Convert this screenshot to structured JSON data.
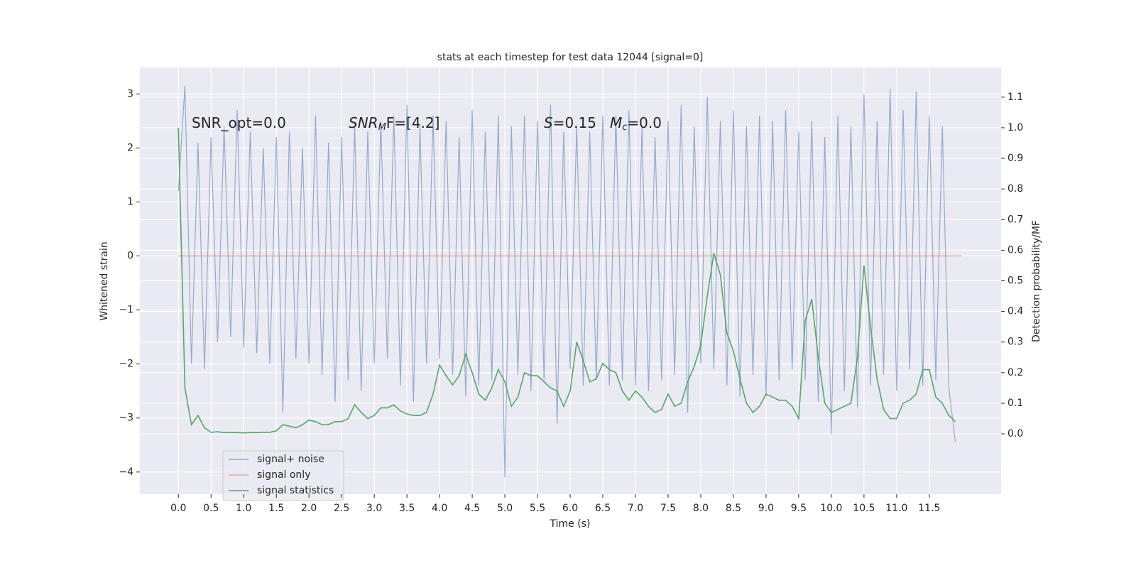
{
  "chart_data": {
    "type": "line",
    "title": "stats at each timestep for test data 12044 [signal=0]",
    "xlabel": "Time (s)",
    "ylabel": "Whitened strain",
    "y2label": "Detection probability/MF",
    "annotations": [
      [
        "SNR_opt=0.0"
      ],
      [
        "SNR",
        "M",
        "F=[4.2]"
      ],
      [
        "S",
        "=0.15"
      ],
      [
        "M",
        "c",
        "=0.0"
      ]
    ],
    "x": [
      0,
      0.1,
      0.2,
      0.3,
      0.4,
      0.5,
      0.6,
      0.7,
      0.8,
      0.9,
      1.0,
      1.1,
      1.2,
      1.3,
      1.4,
      1.5,
      1.6,
      1.7,
      1.8,
      1.9,
      2.0,
      2.1,
      2.2,
      2.3,
      2.4,
      2.5,
      2.6,
      2.7,
      2.8,
      2.9,
      3.0,
      3.1,
      3.2,
      3.3,
      3.4,
      3.5,
      3.6,
      3.7,
      3.8,
      3.9,
      4.0,
      4.1,
      4.2,
      4.3,
      4.4,
      4.5,
      4.6,
      4.7,
      4.8,
      4.9,
      5.0,
      5.1,
      5.2,
      5.3,
      5.4,
      5.5,
      5.6,
      5.7,
      5.8,
      5.9,
      6.0,
      6.1,
      6.2,
      6.3,
      6.4,
      6.5,
      6.6,
      6.7,
      6.8,
      6.9,
      7.0,
      7.1,
      7.2,
      7.3,
      7.4,
      7.5,
      7.6,
      7.7,
      7.8,
      7.9,
      8.0,
      8.1,
      8.2,
      8.3,
      8.4,
      8.5,
      8.6,
      8.7,
      8.8,
      8.9,
      9.0,
      9.1,
      9.2,
      9.3,
      9.4,
      9.5,
      9.6,
      9.7,
      9.8,
      9.9,
      10.0,
      10.1,
      10.2,
      10.3,
      10.4,
      10.5,
      10.6,
      10.7,
      10.8,
      10.9,
      11.0,
      11.1,
      11.2,
      11.3,
      11.4,
      11.5,
      11.6,
      11.7,
      11.8,
      11.9
    ],
    "series": [
      {
        "name": "signal+ noise",
        "color": "#4c72b0",
        "values": [
          1.2,
          3.15,
          -2.0,
          2.1,
          -2.1,
          2.2,
          -1.6,
          2.4,
          -1.5,
          2.7,
          -1.7,
          2.3,
          -1.8,
          2.0,
          -2.0,
          2.2,
          -2.9,
          2.3,
          -1.9,
          2.0,
          -2.0,
          2.6,
          -2.2,
          2.1,
          -2.7,
          2.2,
          -2.3,
          2.4,
          -2.5,
          2.3,
          -2.0,
          2.5,
          -1.9,
          2.6,
          -2.4,
          2.8,
          -2.7,
          2.4,
          -2.0,
          2.6,
          -1.9,
          2.5,
          -2.2,
          2.2,
          -2.6,
          2.7,
          -2.4,
          2.3,
          -2.3,
          2.6,
          -4.1,
          2.4,
          -2.2,
          2.6,
          -2.5,
          2.5,
          -2.3,
          2.8,
          -3.1,
          2.3,
          -2.1,
          2.4,
          -2.4,
          2.3,
          -2.3,
          2.6,
          -2.4,
          2.6,
          -2.3,
          2.7,
          -2.4,
          2.4,
          -2.5,
          2.2,
          -2.3,
          2.5,
          -2.2,
          2.8,
          -2.9,
          2.4,
          -2.0,
          2.95,
          -2.1,
          2.5,
          -2.4,
          2.7,
          -2.6,
          2.4,
          -2.2,
          2.6,
          -2.6,
          2.5,
          -2.3,
          2.7,
          -2.1,
          2.3,
          -2.3,
          2.5,
          -2.7,
          2.2,
          -3.3,
          2.6,
          -2.5,
          2.4,
          -2.8,
          3.0,
          -2.4,
          2.5,
          -2.2,
          3.1,
          -2.5,
          2.7,
          -2.1,
          3.05,
          -2.4,
          2.6,
          -2.3,
          2.4,
          -2.45,
          -3.45
        ]
      },
      {
        "name": "signal only",
        "color": "#dd8452",
        "x": [
          0,
          11.99
        ],
        "values": [
          0,
          0
        ]
      },
      {
        "name": "signal statistics",
        "color": "#55a868",
        "axis": "y2",
        "values": [
          1.0,
          0.15,
          0.03,
          0.06,
          0.02,
          0.005,
          0.007,
          0.004,
          0.004,
          0.004,
          0.003,
          0.004,
          0.004,
          0.005,
          0.005,
          0.01,
          0.03,
          0.025,
          0.02,
          0.03,
          0.045,
          0.04,
          0.03,
          0.03,
          0.04,
          0.04,
          0.05,
          0.095,
          0.07,
          0.05,
          0.06,
          0.085,
          0.085,
          0.095,
          0.075,
          0.065,
          0.06,
          0.06,
          0.07,
          0.13,
          0.225,
          0.19,
          0.16,
          0.19,
          0.26,
          0.2,
          0.13,
          0.11,
          0.15,
          0.21,
          0.17,
          0.09,
          0.12,
          0.2,
          0.19,
          0.19,
          0.17,
          0.15,
          0.14,
          0.09,
          0.14,
          0.3,
          0.24,
          0.17,
          0.18,
          0.23,
          0.21,
          0.2,
          0.14,
          0.11,
          0.14,
          0.12,
          0.09,
          0.07,
          0.08,
          0.13,
          0.09,
          0.1,
          0.17,
          0.22,
          0.29,
          0.45,
          0.59,
          0.52,
          0.33,
          0.27,
          0.18,
          0.1,
          0.07,
          0.09,
          0.13,
          0.12,
          0.11,
          0.11,
          0.09,
          0.05,
          0.37,
          0.44,
          0.25,
          0.1,
          0.07,
          0.08,
          0.09,
          0.1,
          0.25,
          0.55,
          0.35,
          0.18,
          0.08,
          0.05,
          0.05,
          0.1,
          0.11,
          0.13,
          0.21,
          0.21,
          0.12,
          0.1,
          0.06,
          0.04
        ]
      }
    ],
    "xlim": [
      -0.59,
      12.6
    ],
    "ylim": [
      -4.41,
      3.49
    ],
    "y2lim": [
      -0.197,
      1.197
    ],
    "xticks": [
      {
        "value": 0,
        "label": "0.0"
      },
      {
        "value": 0.5,
        "label": "0.5"
      },
      {
        "value": 1,
        "label": "1.0"
      },
      {
        "value": 1.5,
        "label": "1.5"
      },
      {
        "value": 2,
        "label": "2.0"
      },
      {
        "value": 2.5,
        "label": "2.5"
      },
      {
        "value": 3,
        "label": "3.0"
      },
      {
        "value": 3.5,
        "label": "3.5"
      },
      {
        "value": 4,
        "label": "4.0"
      },
      {
        "value": 4.5,
        "label": "4.5"
      },
      {
        "value": 5,
        "label": "5.0"
      },
      {
        "value": 5.5,
        "label": "5.5"
      },
      {
        "value": 6,
        "label": "6.0"
      },
      {
        "value": 6.5,
        "label": "6.5"
      },
      {
        "value": 7,
        "label": "7.0"
      },
      {
        "value": 7.5,
        "label": "7.5"
      },
      {
        "value": 8,
        "label": "8.0"
      },
      {
        "value": 8.5,
        "label": "8.5"
      },
      {
        "value": 9,
        "label": "9.0"
      },
      {
        "value": 9.5,
        "label": "9.5"
      },
      {
        "value": 10,
        "label": "10.0"
      },
      {
        "value": 10.5,
        "label": "10.5"
      },
      {
        "value": 11,
        "label": "11.0"
      },
      {
        "value": 11.5,
        "label": "11.5"
      }
    ],
    "yticks": [
      {
        "value": -4,
        "label": "−4"
      },
      {
        "value": -3,
        "label": "−3"
      },
      {
        "value": -2,
        "label": "−2"
      },
      {
        "value": -1,
        "label": "−1"
      },
      0,
      1,
      2,
      3
    ],
    "y2ticks": [
      {
        "value": 0,
        "label": "0.0"
      },
      {
        "value": 0.1,
        "label": "0.1"
      },
      {
        "value": 0.2,
        "label": "0.2"
      },
      {
        "value": 0.3,
        "label": "0.3"
      },
      {
        "value": 0.4,
        "label": "0.4"
      },
      {
        "value": 0.5,
        "label": "0.5"
      },
      {
        "value": 0.6,
        "label": "0.6"
      },
      {
        "value": 0.7,
        "label": "0.7"
      },
      {
        "value": 0.8,
        "label": "0.8"
      },
      {
        "value": 0.9,
        "label": "0.9"
      },
      {
        "value": 1,
        "label": "1.0"
      },
      {
        "value": 1.1,
        "label": "1.1"
      }
    ],
    "grid": true
  }
}
